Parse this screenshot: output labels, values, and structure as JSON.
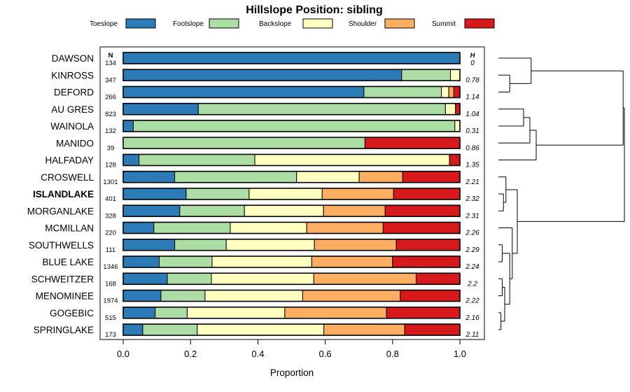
{
  "chart_data": {
    "type": "bar",
    "orientation": "horizontal-stacked",
    "title": "Hillslope Position: sibling",
    "xlabel": "Proportion",
    "xlim": [
      0,
      1
    ],
    "xticks": [
      "0.0",
      "0.2",
      "0.4",
      "0.6",
      "0.8",
      "1.0"
    ],
    "n_header": "N",
    "h_header": "H",
    "legend": {
      "placement": "top",
      "entries": [
        {
          "name": "Toeslope",
          "color": "#2c7bb6"
        },
        {
          "name": "Footslope",
          "color": "#abdda4"
        },
        {
          "name": "Backslope",
          "color": "#ffffbf"
        },
        {
          "name": "Shoulder",
          "color": "#fdae61"
        },
        {
          "name": "Summit",
          "color": "#d7191c"
        }
      ]
    },
    "highlighted": "ISLANDLAKE",
    "rows": [
      {
        "name": "DAWSON",
        "n": "134",
        "h": "0",
        "values": [
          1.0,
          0,
          0,
          0,
          0
        ]
      },
      {
        "name": "KINROSS",
        "n": "347",
        "h": "0.78",
        "values": [
          0.827,
          0.145,
          0.028,
          0,
          0
        ]
      },
      {
        "name": "DEFORD",
        "n": "266",
        "h": "1.14",
        "values": [
          0.715,
          0.23,
          0.022,
          0.015,
          0.018
        ]
      },
      {
        "name": "AU GRES",
        "n": "823",
        "h": "1.04",
        "values": [
          0.223,
          0.734,
          0.03,
          0,
          0.013
        ]
      },
      {
        "name": "WAINOLA",
        "n": "132",
        "h": "0.31",
        "values": [
          0.03,
          0.955,
          0.015,
          0,
          0
        ]
      },
      {
        "name": "MANIDO",
        "n": "39",
        "h": "0.86",
        "values": [
          0,
          0.718,
          0,
          0,
          0.282
        ]
      },
      {
        "name": "HALFADAY",
        "n": "128",
        "h": "1.35",
        "values": [
          0.047,
          0.344,
          0.578,
          0,
          0.031
        ]
      },
      {
        "name": "CROSWELL",
        "n": "1301",
        "h": "2.21",
        "values": [
          0.153,
          0.362,
          0.186,
          0.129,
          0.17
        ]
      },
      {
        "name": "ISLANDLAKE",
        "n": "401",
        "h": "2.32",
        "values": [
          0.187,
          0.187,
          0.217,
          0.212,
          0.197
        ]
      },
      {
        "name": "MORGANLAKE",
        "n": "328",
        "h": "2.31",
        "values": [
          0.168,
          0.192,
          0.235,
          0.183,
          0.222
        ]
      },
      {
        "name": "MCMILLAN",
        "n": "220",
        "h": "2.26",
        "values": [
          0.091,
          0.227,
          0.227,
          0.227,
          0.228
        ]
      },
      {
        "name": "SOUTHWELLS",
        "n": "111",
        "h": "2.29",
        "values": [
          0.153,
          0.153,
          0.262,
          0.243,
          0.189
        ]
      },
      {
        "name": "BLUE LAKE",
        "n": "1346",
        "h": "2.24",
        "values": [
          0.107,
          0.157,
          0.296,
          0.24,
          0.2
        ]
      },
      {
        "name": "SCHWEITZER",
        "n": "168",
        "h": "2.2",
        "values": [
          0.131,
          0.131,
          0.304,
          0.304,
          0.13
        ]
      },
      {
        "name": "MENOMINEE",
        "n": "1974",
        "h": "2.22",
        "values": [
          0.112,
          0.131,
          0.29,
          0.29,
          0.177
        ]
      },
      {
        "name": "GOGEBIC",
        "n": "515",
        "h": "2.16",
        "values": [
          0.095,
          0.095,
          0.29,
          0.302,
          0.218
        ]
      },
      {
        "name": "SPRINGLAKE",
        "n": "173",
        "h": "2.11",
        "values": [
          0.058,
          0.162,
          0.376,
          0.24,
          0.164
        ]
      }
    ],
    "dendrogram": {
      "leaf_order": [
        "DAWSON",
        "KINROSS",
        "DEFORD",
        "AU GRES",
        "WAINOLA",
        "MANIDO",
        "HALFADAY",
        "CROSWELL",
        "ISLANDLAKE",
        "MORGANLAKE",
        "MCMILLAN",
        "SOUTHWELLS",
        "BLUE LAKE",
        "SCHWEITZER",
        "MENOMINEE",
        "GOGEBIC",
        "SPRINGLAKE"
      ],
      "merges": [
        {
          "a": 1,
          "b": 2,
          "height": 0.09
        },
        {
          "a": 0,
          "b": -1,
          "height": 0.26
        },
        {
          "a": 3,
          "b": 4,
          "height": 0.2
        },
        {
          "a": -3,
          "b": 5,
          "height": 0.25
        },
        {
          "a": -4,
          "b": 6,
          "height": 0.3
        },
        {
          "a": -2,
          "b": -5,
          "height": 0.99
        },
        {
          "a": 8,
          "b": 9,
          "height": 0.04
        },
        {
          "a": 7,
          "b": -7,
          "height": 0.06
        },
        {
          "a": 11,
          "b": 12,
          "height": 0.03
        },
        {
          "a": 13,
          "b": 14,
          "height": 0.03
        },
        {
          "a": 15,
          "b": 16,
          "height": 0.02
        },
        {
          "a": -10,
          "b": -11,
          "height": 0.05
        },
        {
          "a": -9,
          "b": -12,
          "height": 0.09
        },
        {
          "a": 10,
          "b": -13,
          "height": 0.11
        },
        {
          "a": -8,
          "b": -14,
          "height": 0.15
        },
        {
          "a": -6,
          "b": -15,
          "height": 1.0
        }
      ]
    }
  }
}
